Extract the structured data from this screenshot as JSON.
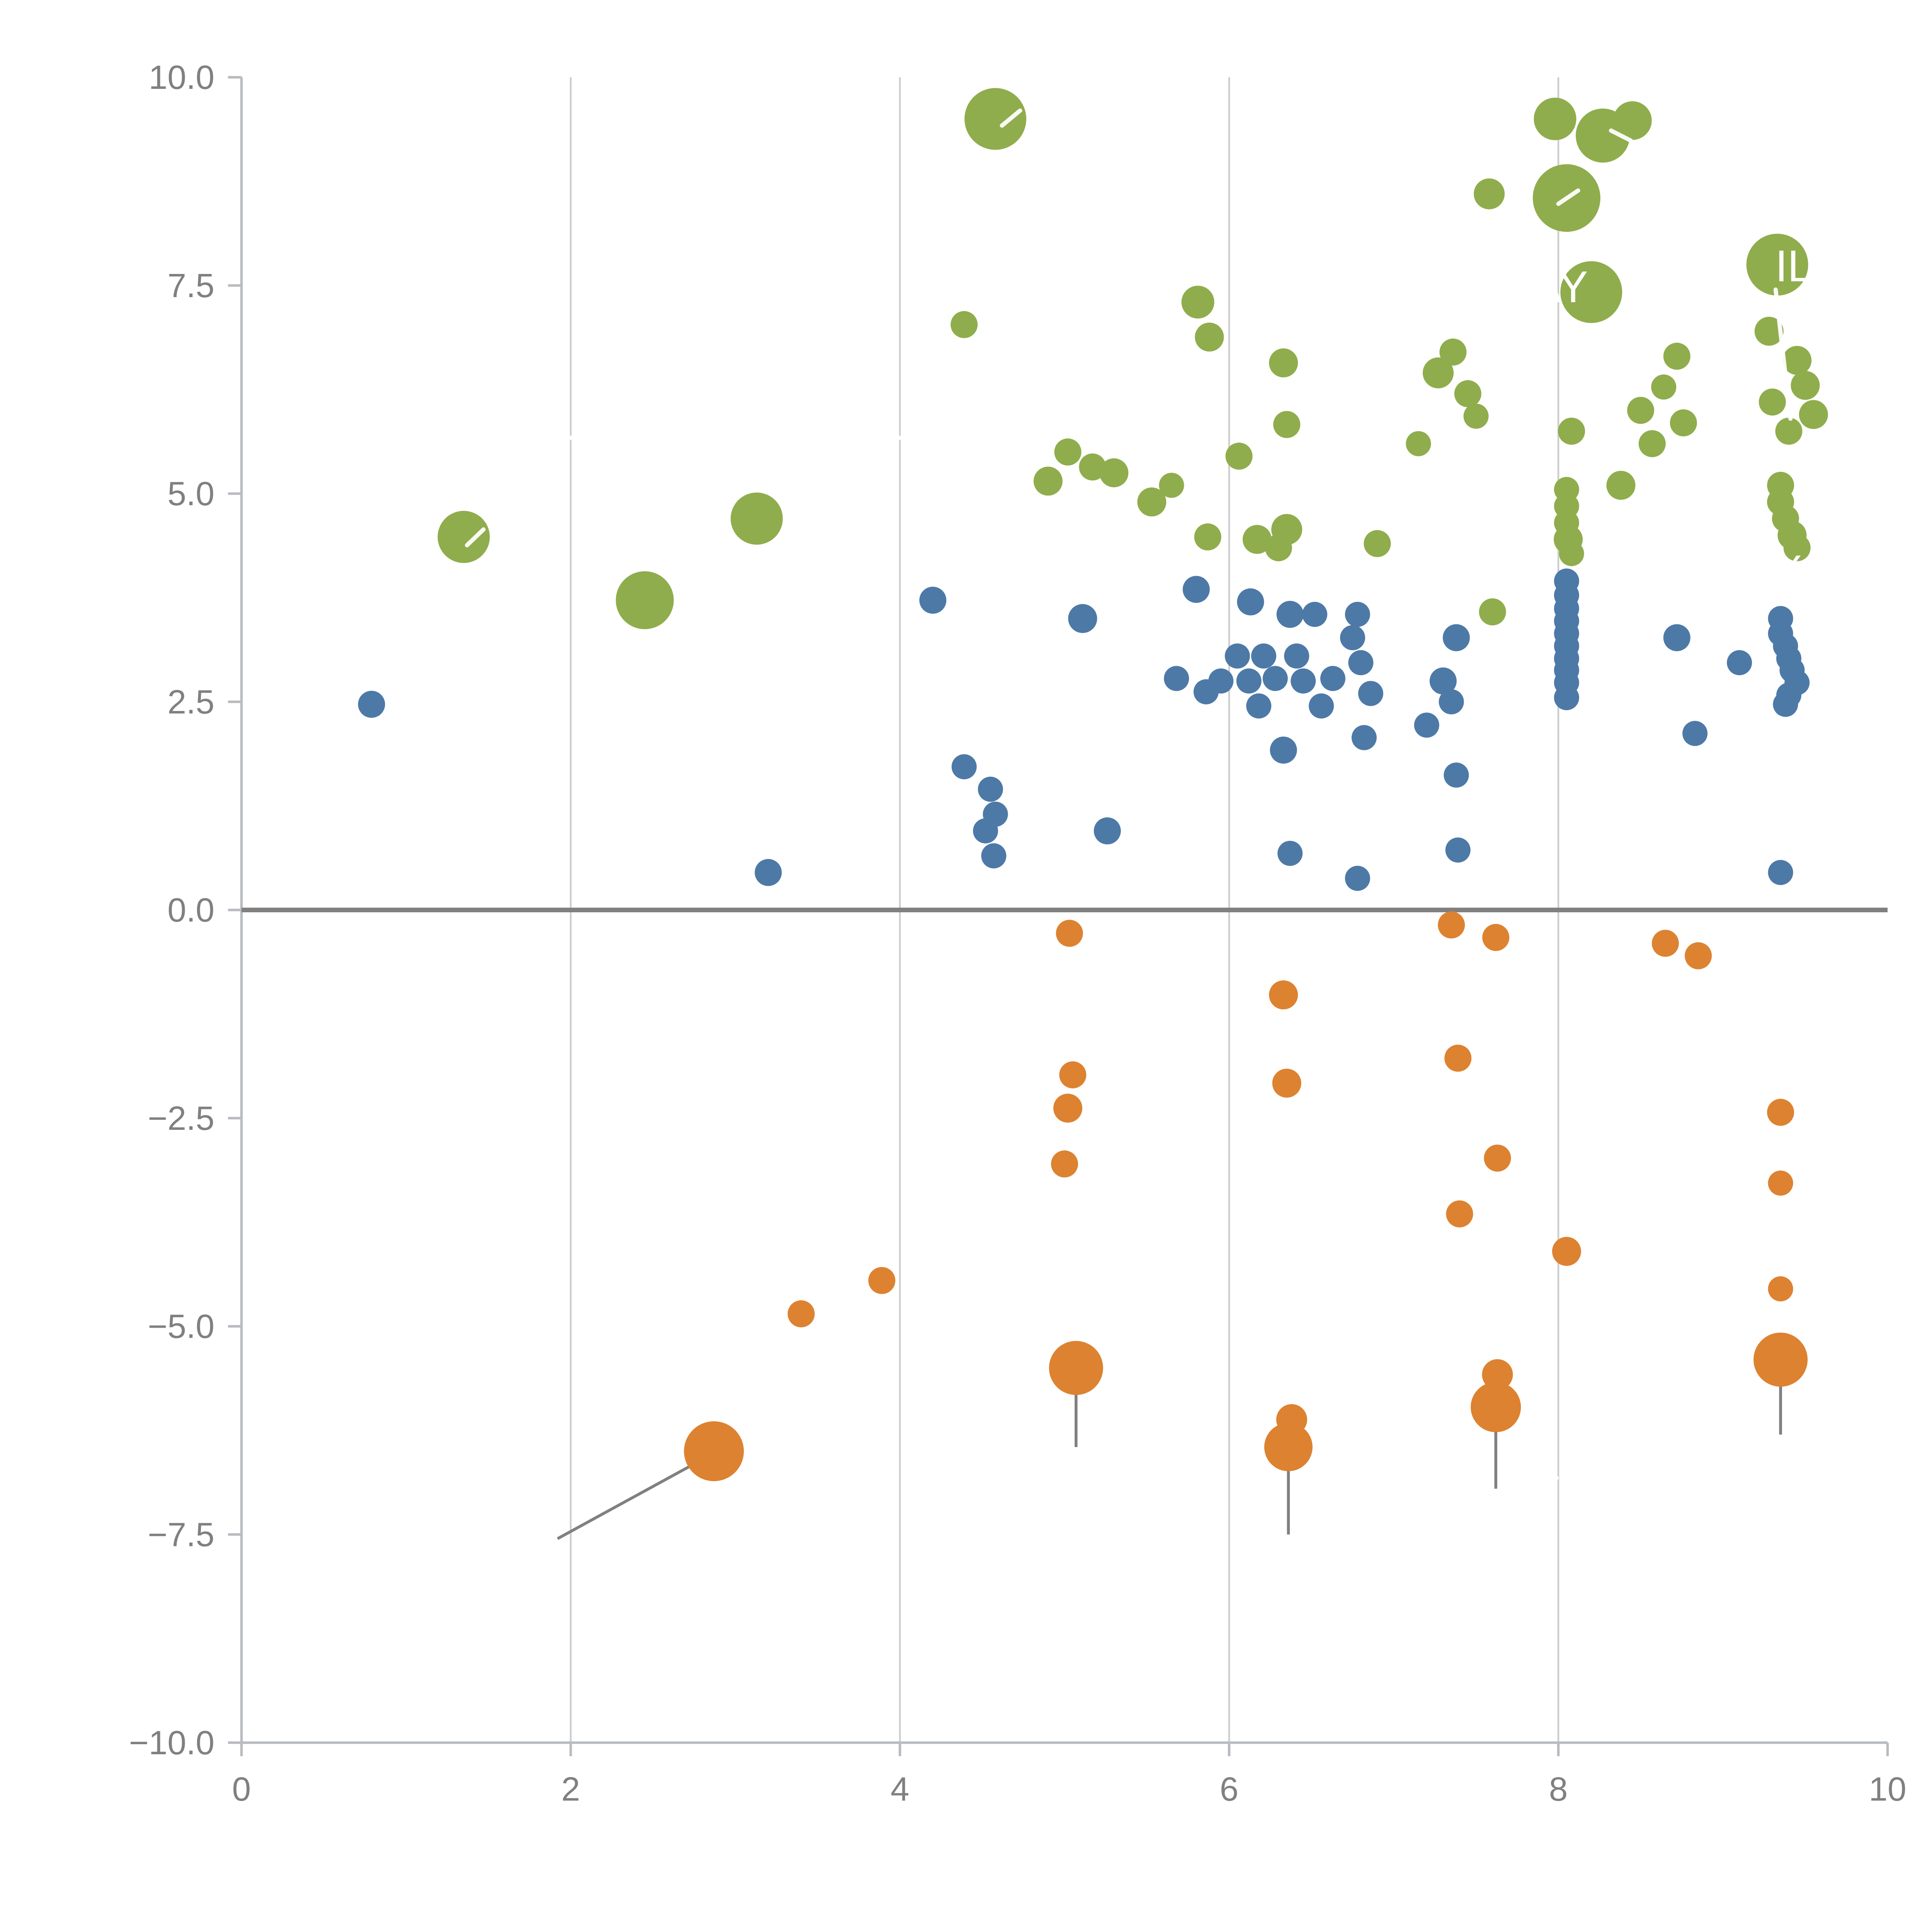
{
  "figure": {
    "background": "#ffffff"
  },
  "chart_data": {
    "type": "scatter",
    "title": "",
    "xlabel": "",
    "ylabel": "",
    "xlim": [
      0,
      10
    ],
    "ylim": [
      -10,
      10
    ],
    "grid": "vertical-gridlines-at-x-ticks",
    "legend": "none",
    "style": {
      "spine_color": "#b8bcc0",
      "grid_color": "#cccccc",
      "tick_label_color": "#808080",
      "zero_line_color": "#808080",
      "whisker_color": "#808080",
      "annotation_color": "#ffffff"
    },
    "x_ticks": [
      {
        "value": 0,
        "label": "0"
      },
      {
        "value": 2,
        "label": "2"
      },
      {
        "value": 4,
        "label": "4"
      },
      {
        "value": 6,
        "label": "6"
      },
      {
        "value": 8,
        "label": "8"
      },
      {
        "value": 10,
        "label": "10"
      }
    ],
    "y_ticks": [
      {
        "value": 10,
        "label": "10.0"
      },
      {
        "value": 7.5,
        "label": "7.5"
      },
      {
        "value": 5,
        "label": "5.0"
      },
      {
        "value": 2.5,
        "label": "2.5"
      },
      {
        "value": 0,
        "label": "0.0"
      },
      {
        "value": -2.5,
        "label": "−2.5"
      },
      {
        "value": -5,
        "label": "−5.0"
      },
      {
        "value": -7.5,
        "label": "−7.5"
      },
      {
        "value": -10,
        "label": "−10.0"
      }
    ],
    "series": [
      {
        "name": "green",
        "color": "#8fad4c",
        "points": [
          [
            4.58,
            9.5,
            16
          ],
          [
            4.39,
            7.03,
            7
          ],
          [
            5.81,
            7.3,
            8.5
          ],
          [
            5.88,
            6.88,
            7.5
          ],
          [
            6.33,
            6.57,
            7.5
          ],
          [
            6.35,
            5.83,
            7
          ],
          [
            4.9,
            5.15,
            7.5
          ],
          [
            5.02,
            5.5,
            7
          ],
          [
            5.17,
            5.32,
            7
          ],
          [
            5.3,
            5.25,
            7.5
          ],
          [
            5.53,
            4.9,
            7.5
          ],
          [
            5.65,
            5.1,
            6.5
          ],
          [
            5.87,
            4.48,
            7
          ],
          [
            6.06,
            5.45,
            7
          ],
          [
            6.17,
            4.45,
            7.5
          ],
          [
            6.35,
            4.57,
            8
          ],
          [
            6.3,
            4.35,
            7
          ],
          [
            6.9,
            4.4,
            7
          ],
          [
            7.15,
            5.6,
            6.5
          ],
          [
            7.27,
            6.45,
            8
          ],
          [
            7.36,
            6.7,
            7
          ],
          [
            7.45,
            6.2,
            7
          ],
          [
            7.5,
            5.93,
            6.5
          ],
          [
            7.58,
            8.6,
            8
          ],
          [
            7.6,
            3.58,
            7
          ],
          [
            7.98,
            9.5,
            11
          ],
          [
            8.27,
            9.3,
            14
          ],
          [
            8.45,
            9.48,
            10
          ],
          [
            8.05,
            8.55,
            17.5
          ],
          [
            8.2,
            7.42,
            16
          ],
          [
            8.08,
            5.75,
            7
          ],
          [
            8.05,
            5.05,
            6.5
          ],
          [
            8.05,
            4.85,
            6.5
          ],
          [
            8.05,
            4.65,
            6.5
          ],
          [
            8.06,
            4.45,
            7.5
          ],
          [
            8.08,
            4.28,
            6.5
          ],
          [
            8.38,
            5.1,
            7.5
          ],
          [
            8.5,
            6.0,
            7
          ],
          [
            8.57,
            5.6,
            7
          ],
          [
            8.64,
            6.28,
            6.5
          ],
          [
            8.72,
            6.65,
            7
          ],
          [
            8.76,
            5.85,
            7
          ],
          [
            9.33,
            7.75,
            16
          ],
          [
            9.28,
            6.95,
            7.5
          ],
          [
            9.45,
            6.6,
            7.5
          ],
          [
            9.5,
            6.3,
            7.5
          ],
          [
            9.3,
            6.1,
            7
          ],
          [
            9.55,
            5.95,
            7.5
          ],
          [
            9.4,
            5.75,
            7
          ],
          [
            9.35,
            5.1,
            7
          ],
          [
            9.35,
            4.9,
            7
          ],
          [
            9.38,
            4.7,
            7
          ],
          [
            9.42,
            4.5,
            7.5
          ],
          [
            9.45,
            4.35,
            7
          ],
          [
            1.35,
            4.48,
            13.5
          ],
          [
            2.45,
            3.72,
            15
          ],
          [
            3.13,
            4.7,
            13.5
          ]
        ]
      },
      {
        "name": "blue",
        "color": "#4d79a7",
        "points": [
          [
            0.79,
            2.47,
            7
          ],
          [
            3.2,
            0.45,
            7
          ],
          [
            4.2,
            3.72,
            7
          ],
          [
            4.39,
            1.72,
            6.5
          ],
          [
            4.55,
            1.45,
            6.5
          ],
          [
            4.58,
            1.15,
            6.5
          ],
          [
            4.52,
            0.95,
            6.5
          ],
          [
            4.57,
            0.65,
            6.5
          ],
          [
            5.11,
            3.5,
            7.5
          ],
          [
            5.26,
            0.95,
            7
          ],
          [
            5.68,
            2.78,
            6.5
          ],
          [
            5.8,
            3.85,
            7
          ],
          [
            5.86,
            2.62,
            6.5
          ],
          [
            5.95,
            2.75,
            6.5
          ],
          [
            6.05,
            3.05,
            6.5
          ],
          [
            6.13,
            3.7,
            7
          ],
          [
            6.12,
            2.75,
            6.5
          ],
          [
            6.18,
            2.45,
            6.5
          ],
          [
            6.21,
            3.05,
            6.5
          ],
          [
            6.28,
            2.78,
            6.5
          ],
          [
            6.33,
            1.92,
            7
          ],
          [
            6.37,
            3.55,
            7
          ],
          [
            6.41,
            3.05,
            6.5
          ],
          [
            6.45,
            2.75,
            6.5
          ],
          [
            6.52,
            3.55,
            6.5
          ],
          [
            6.56,
            2.45,
            6.5
          ],
          [
            6.63,
            2.78,
            6.5
          ],
          [
            6.37,
            0.68,
            6.5
          ],
          [
            6.75,
            3.27,
            6.5
          ],
          [
            6.78,
            3.55,
            6.5
          ],
          [
            6.8,
            2.97,
            6.5
          ],
          [
            6.82,
            2.07,
            6.5
          ],
          [
            6.86,
            2.6,
            6.5
          ],
          [
            6.78,
            0.38,
            6.5
          ],
          [
            7.2,
            2.22,
            6.5
          ],
          [
            7.3,
            2.75,
            7
          ],
          [
            7.35,
            2.5,
            6.5
          ],
          [
            7.38,
            3.27,
            7
          ],
          [
            7.38,
            1.62,
            6.5
          ],
          [
            7.39,
            0.72,
            6.5
          ],
          [
            8.05,
            3.95,
            6.5
          ],
          [
            8.05,
            3.78,
            6.5
          ],
          [
            8.05,
            3.62,
            6.5
          ],
          [
            8.05,
            3.47,
            6.5
          ],
          [
            8.05,
            3.32,
            6.5
          ],
          [
            8.05,
            3.17,
            6.5
          ],
          [
            8.05,
            3.02,
            6.5
          ],
          [
            8.05,
            2.88,
            6.5
          ],
          [
            8.05,
            2.73,
            6.5
          ],
          [
            8.05,
            2.55,
            6.5
          ],
          [
            8.72,
            3.27,
            7
          ],
          [
            8.83,
            2.12,
            6.5
          ],
          [
            9.1,
            2.97,
            6.5
          ],
          [
            9.35,
            3.5,
            6.5
          ],
          [
            9.35,
            3.32,
            6.5
          ],
          [
            9.38,
            3.17,
            6.5
          ],
          [
            9.4,
            3.02,
            6.5
          ],
          [
            9.42,
            2.88,
            6.5
          ],
          [
            9.45,
            2.73,
            6.5
          ],
          [
            9.4,
            2.58,
            6.5
          ],
          [
            9.38,
            2.47,
            6.5
          ],
          [
            9.35,
            0.45,
            6.5
          ]
        ]
      },
      {
        "name": "orange",
        "color": "#dd8230",
        "points": [
          [
            5.03,
            -0.28,
            7
          ],
          [
            7.35,
            -0.18,
            7
          ],
          [
            7.62,
            -0.33,
            7
          ],
          [
            8.65,
            -0.4,
            7
          ],
          [
            8.85,
            -0.55,
            7
          ],
          [
            6.33,
            -1.02,
            7.5
          ],
          [
            5.05,
            -1.98,
            7
          ],
          [
            6.35,
            -2.08,
            7.5
          ],
          [
            5.02,
            -2.38,
            7.5
          ],
          [
            7.39,
            -1.78,
            7
          ],
          [
            5.0,
            -3.05,
            7
          ],
          [
            9.35,
            -2.43,
            7
          ],
          [
            7.63,
            -2.98,
            7
          ],
          [
            7.4,
            -3.65,
            7
          ],
          [
            9.35,
            -3.28,
            6.5
          ],
          [
            8.05,
            -4.1,
            7.5
          ],
          [
            9.35,
            -4.55,
            6.5
          ],
          [
            3.89,
            -4.45,
            7
          ],
          [
            3.4,
            -4.85,
            7
          ],
          [
            5.07,
            -5.5,
            14
          ],
          [
            9.35,
            -5.4,
            14
          ],
          [
            7.63,
            -5.58,
            8
          ],
          [
            7.62,
            -5.97,
            13
          ],
          [
            6.38,
            -6.12,
            8
          ],
          [
            6.36,
            -6.45,
            12.5
          ],
          [
            2.87,
            -6.5,
            15.5
          ]
        ]
      }
    ],
    "whiskers": [
      {
        "x1": 5.07,
        "y1": -5.6,
        "x2": 5.07,
        "y2": -6.45
      },
      {
        "x1": 9.35,
        "y1": -5.5,
        "x2": 9.35,
        "y2": -6.3
      },
      {
        "x1": 7.62,
        "y1": -6.1,
        "x2": 7.62,
        "y2": -6.95
      },
      {
        "x1": 6.36,
        "y1": -6.6,
        "x2": 6.36,
        "y2": -7.5
      },
      {
        "x1": 1.92,
        "y1": -7.55,
        "x2": 2.78,
        "y2": -6.62
      }
    ],
    "white_marks": [
      {
        "x1": 4.62,
        "y1": 9.42,
        "x2": 4.73,
        "y2": 9.6
      },
      {
        "x1": 1.37,
        "y1": 4.38,
        "x2": 1.47,
        "y2": 4.57
      },
      {
        "x1": 8.0,
        "y1": 8.48,
        "x2": 8.12,
        "y2": 8.64
      },
      {
        "x1": 8.32,
        "y1": 9.36,
        "x2": 8.44,
        "y2": 9.24
      },
      {
        "x1": 9.32,
        "y1": 7.45,
        "x2": 9.41,
        "y2": 5.9
      },
      {
        "x1": 1.94,
        "y1": 5.67,
        "x2": 2.03,
        "y2": 5.67
      },
      {
        "x1": 3.96,
        "y1": 5.67,
        "x2": 4.06,
        "y2": 5.67
      },
      {
        "x1": 7.9,
        "y1": -6.82,
        "x2": 7.99,
        "y2": -6.82
      }
    ],
    "annotations": [
      {
        "text": "KAY",
        "x": 7.92,
        "y": 7.3,
        "size": 23
      },
      {
        "text": "IL",
        "x": 9.43,
        "y": 7.55,
        "size": 23
      },
      {
        "text": "X",
        "x": 9.4,
        "y": 3.92,
        "size": 21
      }
    ]
  }
}
